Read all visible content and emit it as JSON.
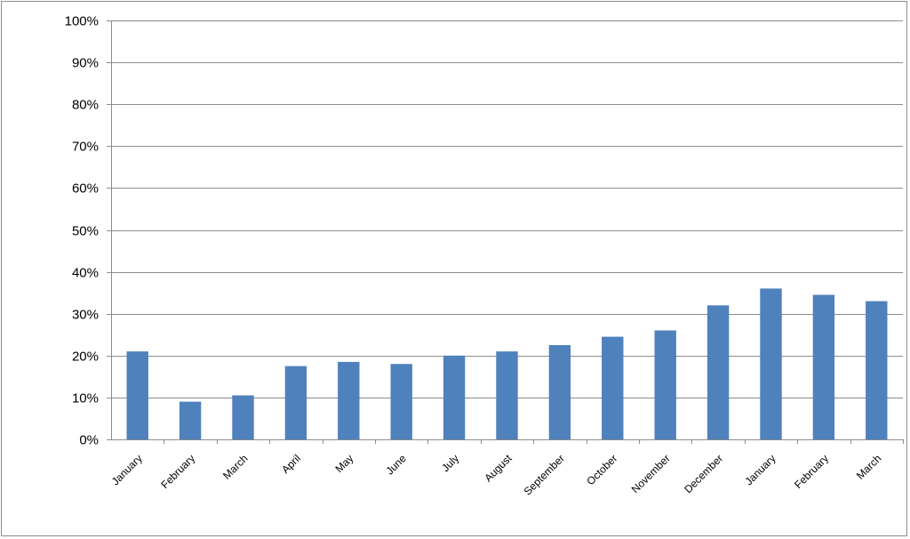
{
  "chart_data": {
    "type": "bar",
    "title": "",
    "xlabel": "",
    "ylabel": "",
    "categories": [
      "January",
      "February",
      "March",
      "April",
      "May",
      "June",
      "July",
      "August",
      "September",
      "October",
      "November",
      "December",
      "January",
      "February",
      "March"
    ],
    "values": [
      21,
      9,
      10.5,
      17.5,
      18.5,
      18,
      20,
      21,
      22.5,
      24.5,
      26,
      32,
      36,
      34.5,
      33
    ],
    "ylim": [
      0,
      100
    ],
    "yticks": [
      0,
      10,
      20,
      30,
      40,
      50,
      60,
      70,
      80,
      90,
      100
    ],
    "ytick_labels": [
      "0%",
      "10%",
      "20%",
      "30%",
      "40%",
      "50%",
      "60%",
      "70%",
      "80%",
      "90%",
      "100%"
    ],
    "y_format": "percent",
    "grid": true,
    "legend": "none",
    "bar_color": "#4f81bd",
    "grid_color": "#8c8c8c",
    "axis_color": "#8c8c8c"
  }
}
